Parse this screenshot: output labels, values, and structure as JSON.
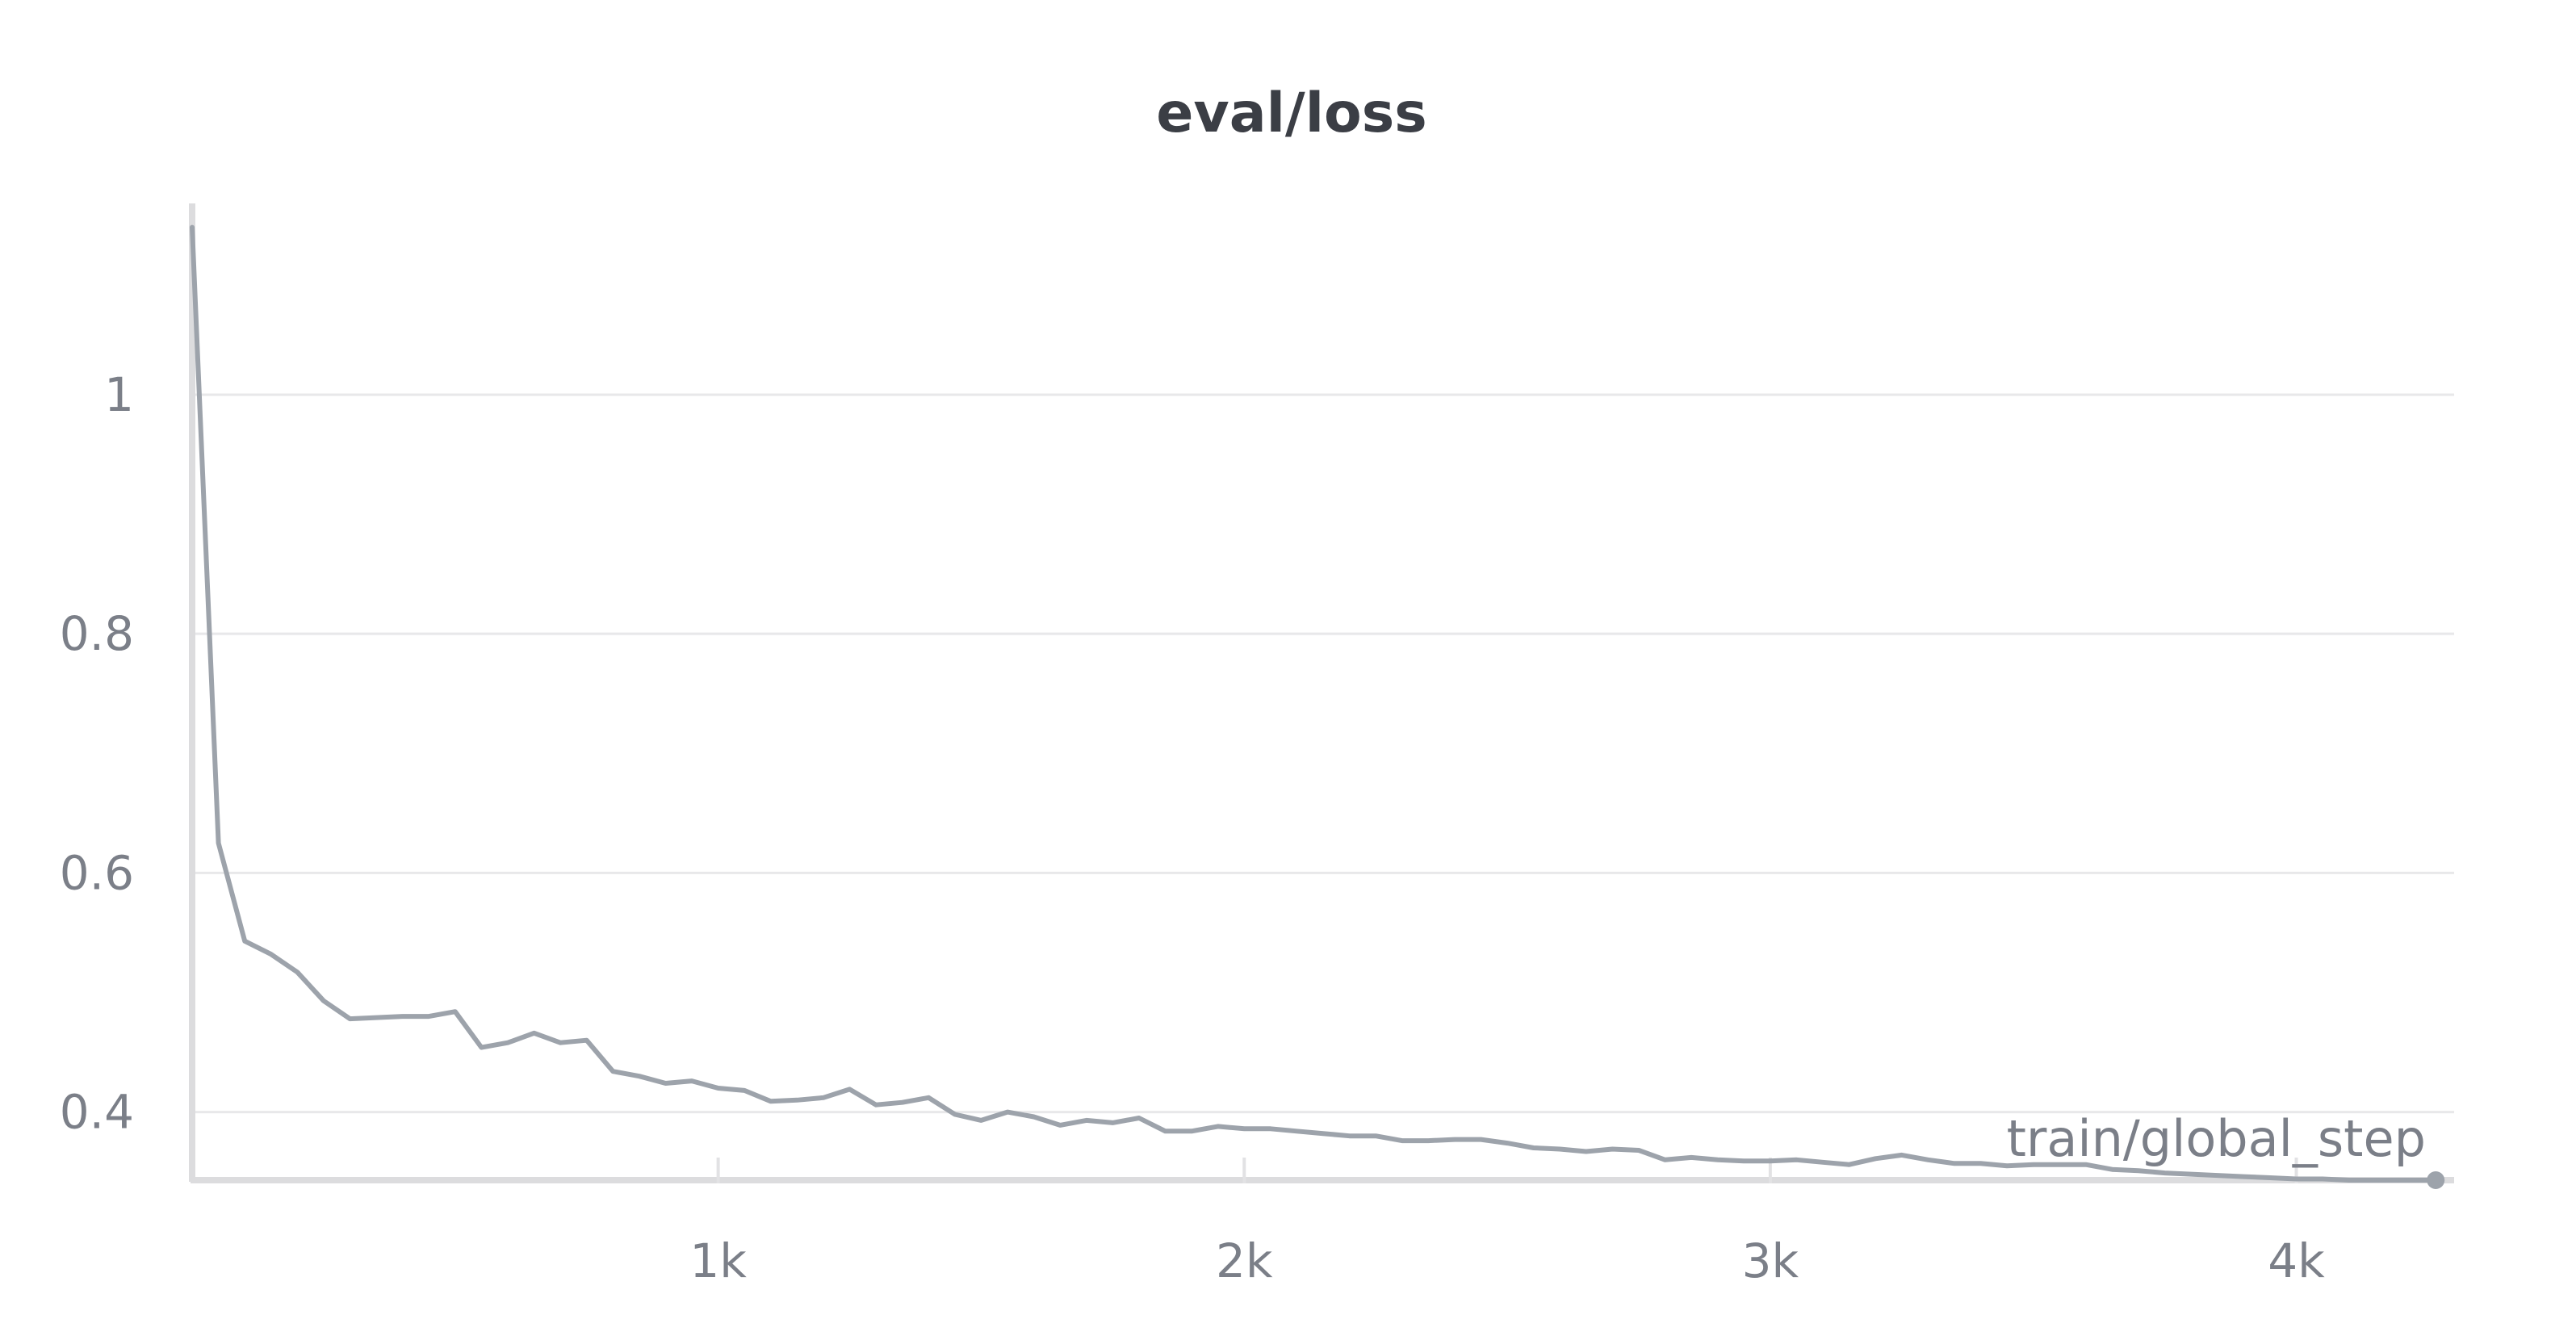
{
  "chart_data": {
    "type": "line",
    "title": "eval/loss",
    "xlabel": "train/global_step",
    "ylabel": "",
    "xlim": [
      0,
      4300
    ],
    "ylim": [
      0.343,
      1.16
    ],
    "x_ticks": [
      {
        "value": 1000,
        "label": "1k"
      },
      {
        "value": 2000,
        "label": "2k"
      },
      {
        "value": 3000,
        "label": "3k"
      },
      {
        "value": 4000,
        "label": "4k"
      }
    ],
    "y_ticks": [
      {
        "value": 0.4,
        "label": "0.4"
      },
      {
        "value": 0.6,
        "label": "0.6"
      },
      {
        "value": 0.8,
        "label": "0.8"
      },
      {
        "value": 1.0,
        "label": "1"
      }
    ],
    "grid": true,
    "legend": "none",
    "series_color": "#9da3ab",
    "series": [
      {
        "points": [
          [
            0,
            1.14
          ],
          [
            50,
            0.625
          ],
          [
            100,
            0.543
          ],
          [
            150,
            0.532
          ],
          [
            200,
            0.517
          ],
          [
            250,
            0.493
          ],
          [
            300,
            0.478
          ],
          [
            350,
            0.479
          ],
          [
            400,
            0.48
          ],
          [
            450,
            0.48
          ],
          [
            500,
            0.484
          ],
          [
            550,
            0.454
          ],
          [
            600,
            0.458
          ],
          [
            650,
            0.466
          ],
          [
            700,
            0.458
          ],
          [
            750,
            0.46
          ],
          [
            800,
            0.434
          ],
          [
            850,
            0.43
          ],
          [
            900,
            0.424
          ],
          [
            950,
            0.426
          ],
          [
            1000,
            0.42
          ],
          [
            1050,
            0.418
          ],
          [
            1100,
            0.409
          ],
          [
            1150,
            0.41
          ],
          [
            1200,
            0.412
          ],
          [
            1250,
            0.419
          ],
          [
            1300,
            0.406
          ],
          [
            1350,
            0.408
          ],
          [
            1400,
            0.412
          ],
          [
            1450,
            0.398
          ],
          [
            1500,
            0.393
          ],
          [
            1550,
            0.4
          ],
          [
            1600,
            0.396
          ],
          [
            1650,
            0.389
          ],
          [
            1700,
            0.393
          ],
          [
            1750,
            0.391
          ],
          [
            1800,
            0.395
          ],
          [
            1850,
            0.384
          ],
          [
            1900,
            0.384
          ],
          [
            1950,
            0.388
          ],
          [
            2000,
            0.386
          ],
          [
            2050,
            0.386
          ],
          [
            2100,
            0.384
          ],
          [
            2150,
            0.382
          ],
          [
            2200,
            0.38
          ],
          [
            2250,
            0.38
          ],
          [
            2300,
            0.376
          ],
          [
            2350,
            0.376
          ],
          [
            2400,
            0.377
          ],
          [
            2450,
            0.377
          ],
          [
            2500,
            0.374
          ],
          [
            2550,
            0.37
          ],
          [
            2600,
            0.369
          ],
          [
            2650,
            0.367
          ],
          [
            2700,
            0.369
          ],
          [
            2750,
            0.368
          ],
          [
            2800,
            0.36
          ],
          [
            2850,
            0.362
          ],
          [
            2900,
            0.36
          ],
          [
            2950,
            0.359
          ],
          [
            3000,
            0.359
          ],
          [
            3050,
            0.36
          ],
          [
            3100,
            0.358
          ],
          [
            3150,
            0.356
          ],
          [
            3200,
            0.361
          ],
          [
            3250,
            0.364
          ],
          [
            3300,
            0.36
          ],
          [
            3350,
            0.357
          ],
          [
            3400,
            0.357
          ],
          [
            3450,
            0.355
          ],
          [
            3500,
            0.356
          ],
          [
            3550,
            0.356
          ],
          [
            3600,
            0.356
          ],
          [
            3650,
            0.352
          ],
          [
            3700,
            0.351
          ],
          [
            3750,
            0.349
          ],
          [
            3800,
            0.348
          ],
          [
            3850,
            0.347
          ],
          [
            3900,
            0.346
          ],
          [
            3950,
            0.345
          ],
          [
            4000,
            0.344
          ],
          [
            4050,
            0.344
          ],
          [
            4100,
            0.343
          ],
          [
            4150,
            0.343
          ],
          [
            4200,
            0.343
          ],
          [
            4265,
            0.343
          ]
        ]
      }
    ]
  }
}
